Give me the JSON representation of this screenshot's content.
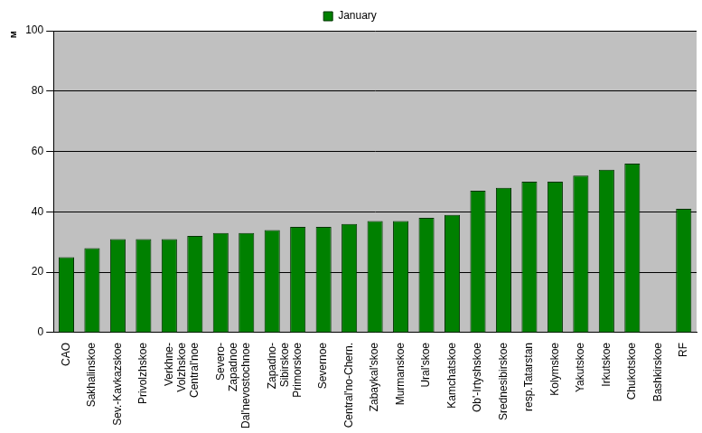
{
  "chart_data": {
    "type": "bar",
    "y_label": "м",
    "categories": [
      "CAO",
      "Sakhalinskoe",
      "Sev.-Kavkazskoe",
      "Privolzhskoe",
      "Verkhne-\nVolzhskoe",
      "Central'noe",
      "Severo-\nZapadnoe",
      "Dal'nevostochnoe",
      "Zapadno-\nSibirskoe",
      "Primorskoe",
      "Severnoe",
      "Central'no-Chern.",
      "Zabaykal'skoe",
      "Murmanskoe",
      "Ural'skoe",
      "Kamchatskoe",
      "Ob'-Irtyshskoe",
      "Srednesibirskoe",
      "resp.Tatarstan",
      "Kolymskoe",
      "Yakutskoe",
      "Irkutskoe",
      "Chukotskoe",
      "Bashkirskoe",
      "RF"
    ],
    "series": [
      {
        "name": "January",
        "color": "#008000",
        "values": [
          25,
          28,
          31,
          31,
          31,
          32,
          33,
          33,
          34,
          35,
          35,
          36,
          37,
          37,
          38,
          39,
          47,
          48,
          50,
          50,
          52,
          54,
          56,
          null,
          41
        ]
      }
    ],
    "ylim": [
      0,
      100
    ],
    "yticks": [
      0,
      20,
      40,
      60,
      80,
      100
    ],
    "grid": true,
    "legend": "top"
  }
}
